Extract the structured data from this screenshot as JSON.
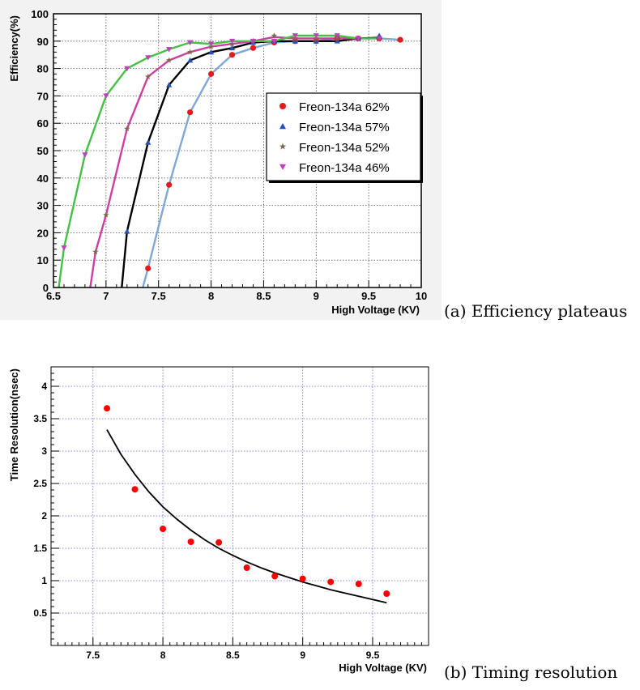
{
  "captions": {
    "a": "(a) Efficiency plateaus",
    "b": "(b) Timing resolution"
  },
  "chart_data": [
    {
      "type": "scatter",
      "xlabel": "High Voltage (KV)",
      "ylabel": "Efficiency(%)",
      "xlim": [
        6.5,
        10
      ],
      "ylim": [
        0,
        100
      ],
      "xticks": [
        6.5,
        7,
        7.5,
        8,
        8.5,
        9,
        9.5,
        10
      ],
      "yticks": [
        0,
        10,
        20,
        30,
        40,
        50,
        60,
        70,
        80,
        90,
        100
      ],
      "grid": true,
      "legend_position": "center-right",
      "series": [
        {
          "name": "Freon-134a  62%",
          "marker": "circle",
          "color": "#e41a1c",
          "line_color": "#7fa7d6",
          "x": [
            7.4,
            7.6,
            7.8,
            8.0,
            8.2,
            8.4,
            8.6,
            8.8,
            9.0,
            9.2,
            9.4,
            9.6,
            9.8
          ],
          "y": [
            7,
            37.5,
            64,
            78,
            85,
            87.5,
            89.5,
            90,
            90,
            91,
            91,
            91,
            90.5
          ]
        },
        {
          "name": "Freon-134a  57%",
          "marker": "triangle",
          "color": "#2850b4",
          "line_color": "#000000",
          "x": [
            7.2,
            7.4,
            7.6,
            7.8,
            8.0,
            8.2,
            8.4,
            8.6,
            8.8,
            9.0,
            9.2,
            9.4,
            9.6
          ],
          "y": [
            20.5,
            53,
            74,
            83,
            86,
            87.5,
            89.5,
            90,
            90,
            90,
            90,
            91,
            92
          ]
        },
        {
          "name": "Freon-134a  52%",
          "marker": "star",
          "color": "#7a6a4a",
          "line_color": "#cc3fa0",
          "x": [
            6.9,
            7.0,
            7.2,
            7.4,
            7.6,
            7.8,
            8.0,
            8.2,
            8.4,
            8.6,
            8.8,
            9.0,
            9.2,
            9.4
          ],
          "y": [
            13,
            26.5,
            58,
            77,
            83,
            86,
            88,
            89,
            90,
            92,
            91,
            91,
            91,
            91
          ]
        },
        {
          "name": "Freon-134a  46%",
          "marker": "triangle-down",
          "color": "#c040c0",
          "line_color": "#44c044",
          "x": [
            6.6,
            6.8,
            7.0,
            7.2,
            7.4,
            7.6,
            7.8,
            8.0,
            8.2,
            8.4,
            8.6,
            8.8,
            9.0,
            9.2,
            9.4,
            9.6
          ],
          "y": [
            14.5,
            48.5,
            70,
            80,
            84,
            87,
            89.5,
            89,
            90,
            90,
            90,
            92,
            92,
            92,
            91,
            91
          ]
        }
      ]
    },
    {
      "type": "scatter",
      "xlabel": "High Voltage (KV)",
      "ylabel": "Time Resolution(nsec)",
      "xlim": [
        7.2,
        9.9
      ],
      "ylim": [
        0,
        4.3
      ],
      "xticks": [
        7.5,
        8,
        8.5,
        9,
        9.5
      ],
      "xtick_labels": [
        "7.5",
        "8",
        "8.5",
        "9",
        "9.5"
      ],
      "yticks": [
        0.5,
        1,
        1.5,
        2,
        2.5,
        3,
        3.5,
        4
      ],
      "ytick_labels": [
        "0.5",
        "1",
        "1.5",
        "2",
        "2.5",
        "3",
        "3.5",
        "4"
      ],
      "grid": true,
      "series": [
        {
          "marker": "circle",
          "color": "#ff0000",
          "x": [
            7.6,
            7.8,
            8.0,
            8.2,
            8.4,
            8.6,
            8.8,
            9.0,
            9.2,
            9.4,
            9.6
          ],
          "y": [
            3.66,
            2.41,
            1.8,
            1.6,
            1.59,
            1.2,
            1.07,
            1.03,
            0.98,
            0.95,
            0.8
          ]
        }
      ],
      "fit_curve": {
        "color": "#000000",
        "x": [
          7.6,
          7.7,
          7.8,
          7.9,
          8.0,
          8.1,
          8.2,
          8.3,
          8.4,
          8.5,
          8.6,
          8.7,
          8.8,
          8.9,
          9.0,
          9.1,
          9.2,
          9.3,
          9.4,
          9.5,
          9.6
        ],
        "y": [
          3.33,
          2.95,
          2.64,
          2.37,
          2.14,
          1.95,
          1.78,
          1.63,
          1.5,
          1.39,
          1.29,
          1.2,
          1.12,
          1.05,
          0.98,
          0.92,
          0.86,
          0.81,
          0.76,
          0.71,
          0.66
        ]
      }
    }
  ]
}
